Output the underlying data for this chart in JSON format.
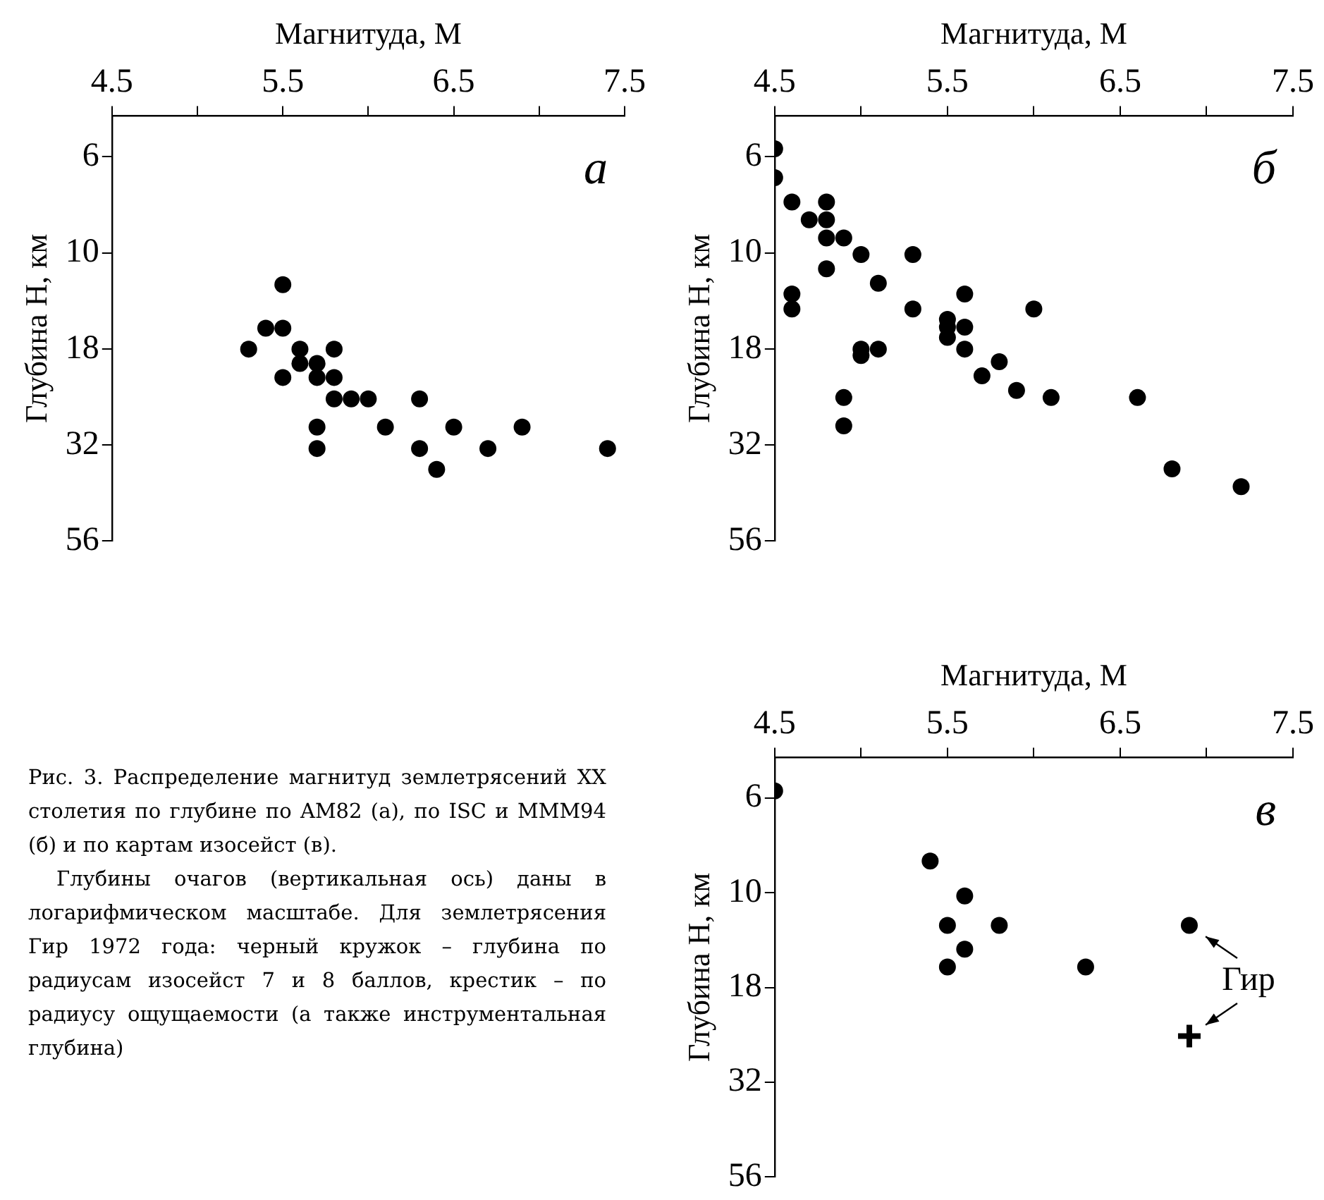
{
  "chart_data": [
    {
      "type": "scatter",
      "xlabel": "Магнитуда, M",
      "ylabel": "Глубина H, км",
      "xlim": [
        4.5,
        7.5
      ],
      "xticks": [
        4.5,
        {
          "value": 5,
          "label": null
        },
        5.5,
        {
          "value": 6,
          "label": null
        },
        6.5,
        {
          "value": 7,
          "label": null
        },
        7.5
      ],
      "ylim": [
        56.2,
        4.4
      ],
      "yticks": [
        {
          "value": 5.62,
          "label": "6"
        },
        {
          "value": 10,
          "label": "10"
        },
        {
          "value": 17.8,
          "label": "18"
        },
        {
          "value": 31.6,
          "label": "32"
        },
        {
          "value": 56.2,
          "label": "56"
        }
      ],
      "log": "y",
      "grid": false,
      "legend": false,
      "marker": "circle",
      "annotations": [
        "а"
      ],
      "series": [
        {
          "color": "#000000",
          "x": [
            5.3,
            5.4,
            5.5,
            5.5,
            5.6,
            5.6,
            5.7,
            5.7,
            5.5,
            5.8,
            5.8,
            5.8,
            5.9,
            6.0,
            6.3,
            5.7,
            6.1,
            6.5,
            6.9,
            5.7,
            6.3,
            6.7,
            7.4,
            6.4
          ],
          "values": [
            17.8,
            15.7,
            15.7,
            12.1,
            17.8,
            19.4,
            19.4,
            21.1,
            21.1,
            17.8,
            21.1,
            24.0,
            24.0,
            24.0,
            24.0,
            28.4,
            28.4,
            28.4,
            28.4,
            32.3,
            32.3,
            32.3,
            32.3,
            36.6
          ]
        }
      ]
    },
    {
      "type": "scatter",
      "xlabel": "Магнитуда, M",
      "ylabel": "Глубина H, км",
      "xlim": [
        4.5,
        7.5
      ],
      "xticks": [
        4.5,
        {
          "value": 5,
          "label": null
        },
        5.5,
        {
          "value": 6,
          "label": null
        },
        6.5,
        {
          "value": 7,
          "label": null
        },
        7.5
      ],
      "ylim": [
        56.2,
        4.4
      ],
      "yticks": [
        {
          "value": 5.62,
          "label": "6"
        },
        {
          "value": 10,
          "label": "10"
        },
        {
          "value": 17.8,
          "label": "18"
        },
        {
          "value": 31.6,
          "label": "32"
        },
        {
          "value": 56.2,
          "label": "56"
        }
      ],
      "log": "y",
      "grid": false,
      "legend": false,
      "marker": "circle",
      "annotations": [
        "б"
      ],
      "series": [
        {
          "color": "#000000",
          "x": [
            4.5,
            4.5,
            4.6,
            4.7,
            4.8,
            4.8,
            4.8,
            4.9,
            5.0,
            5.3,
            4.8,
            5.1,
            4.6,
            4.6,
            5.3,
            5.6,
            6.0,
            5.5,
            5.5,
            5.5,
            5.6,
            5.6,
            5.0,
            5.0,
            5.1,
            5.8,
            5.7,
            5.9,
            6.1,
            6.6,
            4.9,
            4.9,
            6.8,
            7.2
          ],
          "values": [
            5.36,
            6.37,
            7.37,
            8.2,
            7.37,
            8.2,
            9.14,
            9.14,
            10.1,
            10.1,
            11.0,
            12.0,
            12.8,
            14.0,
            14.0,
            12.8,
            14.0,
            14.9,
            15.6,
            16.6,
            15.6,
            17.8,
            17.8,
            18.5,
            17.8,
            19.2,
            20.9,
            22.8,
            23.8,
            23.8,
            23.8,
            28.2,
            36.5,
            40.6
          ]
        }
      ]
    },
    {
      "type": "scatter",
      "xlabel": "Магнитуда, M",
      "ylabel": "Глубина H, км",
      "xlim": [
        4.5,
        7.5
      ],
      "xticks": [
        4.5,
        {
          "value": 5,
          "label": null
        },
        5.5,
        {
          "value": 6,
          "label": null
        },
        6.5,
        {
          "value": 7,
          "label": null
        },
        7.5
      ],
      "ylim": [
        56.2,
        4.4
      ],
      "yticks": [
        {
          "value": 5.62,
          "label": "6"
        },
        {
          "value": 10,
          "label": "10"
        },
        {
          "value": 17.8,
          "label": "18"
        },
        {
          "value": 31.6,
          "label": "32"
        },
        {
          "value": 56.2,
          "label": "56"
        }
      ],
      "log": "y",
      "grid": false,
      "legend": false,
      "marker": "circle",
      "annotations": [
        "в",
        {
          "text": "Гир",
          "x": 6.9,
          "y": 12.2
        },
        "Рис. 3. Распределение магнитуд землетрясений XX столетия по глубине по AM82 (а), по ISC и MMM94 (б) и по картам изосейст (в).",
        "Глубины очагов (вертикальная ось) даны в логарифмическом масштабе. Для землетрясения Гир 1972 года: черный кружок – глубина по радиусам изосейст 7 и 8 баллов, крестик – по радиусу ощущаемости (а также инструментальная глубина)"
      ],
      "series": [
        {
          "color": "#000000",
          "x": [
            4.5,
            5.4,
            5.6,
            5.5,
            5.8,
            6.9,
            5.6,
            5.5,
            6.3
          ],
          "values": [
            5.39,
            8.25,
            10.2,
            12.2,
            12.2,
            12.2,
            14.1,
            15.7,
            15.7
          ]
        },
        {
          "color": "#000000",
          "marker": "cross",
          "x": [
            6.9
          ],
          "values": [
            23.9
          ]
        }
      ]
    }
  ]
}
